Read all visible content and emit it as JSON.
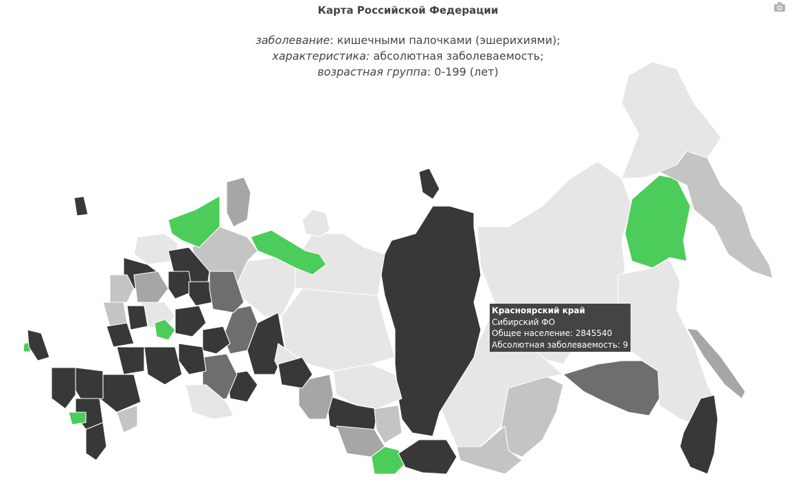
{
  "header": {
    "title": "Карта Российской Федерации",
    "disease_label": "заболевание",
    "disease_value": ": кишечными палочками (эшерихиями);",
    "characteristic_label": "характеристика:",
    "characteristic_value": " абсолютная заболеваемость;",
    "age_group_label": "возрастная группа",
    "age_group_value": ": 0-199 (лет)"
  },
  "toolbar": {
    "camera_icon": "camera-icon"
  },
  "colors": {
    "none": "#e6e6e6",
    "low": "#c4c4c4",
    "mid": "#a6a6a6",
    "midhigh": "#6e6e6e",
    "high": "#383838",
    "highlight": "#4ccc5a",
    "tooltip_bg": "#444444"
  },
  "tooltip": {
    "region": "Красноярский край",
    "district": "Сибирский ФО",
    "population": "Общее население: 2845540",
    "incidence": "Абсолютная заболеваемость: 9"
  },
  "regions": [
    {
      "id": "krasnoyarsk",
      "level": "high"
    },
    {
      "id": "yakutia",
      "level": "none"
    },
    {
      "id": "magadan",
      "level": "highlight"
    },
    {
      "id": "chukotka",
      "level": "none"
    },
    {
      "id": "kamchatka",
      "level": "low"
    },
    {
      "id": "khabarovsk",
      "level": "none"
    },
    {
      "id": "amur",
      "level": "midhigh"
    },
    {
      "id": "primorye",
      "level": "high"
    },
    {
      "id": "sakhalin",
      "level": "mid"
    },
    {
      "id": "irkutsk",
      "level": "none"
    },
    {
      "id": "buryatia",
      "level": "low"
    },
    {
      "id": "zabaykalsky",
      "level": "low"
    },
    {
      "id": "tyva",
      "level": "highlight"
    },
    {
      "id": "altai",
      "level": "high"
    },
    {
      "id": "nenets",
      "level": "highlight"
    },
    {
      "id": "karelia",
      "level": "highlight"
    },
    {
      "id": "murmansk",
      "level": "mid"
    }
  ]
}
